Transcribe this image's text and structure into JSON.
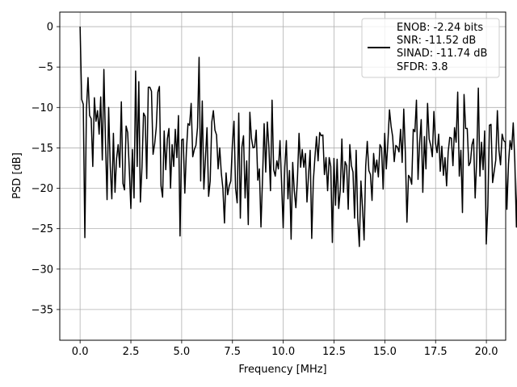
{
  "chart_data": {
    "type": "line",
    "xlabel": "Frequency [MHz]",
    "ylabel": "PSD [dB]",
    "xlim": [
      -1.0,
      20.95
    ],
    "ylim": [
      -38.8,
      1.8
    ],
    "grid": true,
    "x_ticks": [
      0.0,
      2.5,
      5.0,
      7.5,
      10.0,
      12.5,
      15.0,
      17.5,
      20.0
    ],
    "x_tick_labels": [
      "0.0",
      "2.5",
      "5.0",
      "7.5",
      "10.0",
      "12.5",
      "15.0",
      "17.5",
      "20.0"
    ],
    "y_ticks": [
      0,
      -5,
      -10,
      -15,
      -20,
      -25,
      -30,
      -35
    ],
    "y_tick_labels": [
      "0",
      "−5",
      "−10",
      "−15",
      "−20",
      "−25",
      "−30",
      "−35"
    ],
    "legend": {
      "position": "upper right",
      "entries": [
        "ENOB: -2.24 bits",
        "SNR: -11.52 dB",
        "SINAD: -11.74 dB",
        "SFDR: 3.8"
      ]
    },
    "series": [
      {
        "color": "#000000",
        "x_start": 0.0,
        "x_step": 0.0781,
        "values": [
          0.0,
          -9.0,
          -9.6,
          -26.1,
          -10.2,
          -6.3,
          -11.0,
          -11.4,
          -17.3,
          -8.8,
          -11.7,
          -10.4,
          -13.3,
          -8.7,
          -16.5,
          -5.3,
          -14.2,
          -21.4,
          -10.0,
          -17.3,
          -21.3,
          -13.2,
          -20.5,
          -16.3,
          -14.6,
          -17.4,
          -9.3,
          -19.4,
          -20.2,
          -12.3,
          -13.1,
          -17.6,
          -22.5,
          -15.2,
          -21.2,
          -5.5,
          -17.3,
          -6.8,
          -21.7,
          -17.4,
          -10.7,
          -11.1,
          -18.8,
          -7.5,
          -7.5,
          -8.0,
          -15.8,
          -14.5,
          -12.5,
          -8.1,
          -7.4,
          -19.7,
          -21.1,
          -12.9,
          -17.7,
          -13.9,
          -12.6,
          -20.0,
          -14.6,
          -17.3,
          -12.7,
          -16.2,
          -11.0,
          -25.9,
          -14.0,
          -13.9,
          -20.6,
          -15.4,
          -12.0,
          -12.2,
          -9.5,
          -16.1,
          -15.2,
          -14.7,
          -12.5,
          -3.8,
          -19.1,
          -9.2,
          -20.1,
          -16.3,
          -12.5,
          -21.0,
          -19.1,
          -11.8,
          -10.4,
          -12.8,
          -13.4,
          -17.6,
          -15.0,
          -18.1,
          -20.0,
          -24.3,
          -18.1,
          -20.8,
          -19.7,
          -19.1,
          -14.5,
          -11.7,
          -20.0,
          -21.8,
          -10.7,
          -23.7,
          -14.9,
          -13.5,
          -21.2,
          -16.6,
          -24.5,
          -10.6,
          -13.8,
          -15.0,
          -14.9,
          -12.8,
          -19.0,
          -17.6,
          -24.8,
          -18.7,
          -12.0,
          -18.0,
          -11.8,
          -14.9,
          -20.3,
          -9.1,
          -17.7,
          -18.5,
          -16.6,
          -17.6,
          -14.1,
          -19.4,
          -24.9,
          -17.4,
          -14.1,
          -21.3,
          -17.8,
          -26.3,
          -16.8,
          -20.3,
          -22.4,
          -18.8,
          -13.2,
          -17.4,
          -15.2,
          -17.4,
          -15.7,
          -21.7,
          -18.3,
          -15.3,
          -26.2,
          -19.1,
          -16.2,
          -13.6,
          -16.6,
          -13.1,
          -13.5,
          -13.4,
          -18.3,
          -16.2,
          -20.3,
          -16.2,
          -17.3,
          -26.7,
          -16.3,
          -22.1,
          -16.4,
          -22.5,
          -20.2,
          -13.9,
          -20.5,
          -16.7,
          -17.2,
          -22.6,
          -14.6,
          -17.2,
          -18.0,
          -23.7,
          -15.3,
          -23.8,
          -27.2,
          -19.1,
          -22.4,
          -26.4,
          -17.3,
          -14.2,
          -17.8,
          -18.3,
          -21.5,
          -15.7,
          -18.0,
          -16.5,
          -18.6,
          -14.6,
          -15.0,
          -20.1,
          -13.2,
          -17.6,
          -14.3,
          -10.3,
          -12.3,
          -13.6,
          -16.7,
          -14.7,
          -14.9,
          -15.5,
          -12.7,
          -16.8,
          -10.2,
          -15.6,
          -24.2,
          -18.4,
          -18.7,
          -19.5,
          -12.7,
          -13.0,
          -9.1,
          -18.9,
          -14.4,
          -11.5,
          -20.5,
          -13.6,
          -17.6,
          -9.5,
          -13.9,
          -14.7,
          -16.1,
          -10.5,
          -14.4,
          -15.6,
          -13.3,
          -17.9,
          -14.8,
          -18.4,
          -16.2,
          -19.7,
          -15.5,
          -13.7,
          -13.8,
          -17.2,
          -12.5,
          -14.3,
          -8.1,
          -18.5,
          -15.3,
          -23.0,
          -8.4,
          -12.6,
          -12.6,
          -17.2,
          -16.8,
          -14.6,
          -13.9,
          -21.2,
          -16.3,
          -7.6,
          -18.5,
          -14.3,
          -17.7,
          -12.9,
          -26.9,
          -22.2,
          -12.2,
          -12.1,
          -19.3,
          -17.9,
          -16.5,
          -10.4,
          -15.3,
          -17.1,
          -13.3,
          -14.1,
          -14.3,
          -22.6,
          -17.0,
          -14.1,
          -15.2,
          -11.9,
          -16.7,
          -24.8,
          -16.5,
          -22.6,
          -15.1,
          -12.6,
          -11.5,
          -15.8,
          -17.4,
          -15.2,
          -16.1,
          -17.8,
          -11.8,
          -11.1,
          -11.9,
          -14.9,
          -23.5,
          -21.6,
          -15.6,
          -22.0,
          -13.3,
          -14.8,
          -13.0,
          -16.3,
          -17.2,
          -10.0,
          -16.4,
          -11.7,
          -13.7,
          -15.7,
          -19.1,
          -14.8,
          -16.8,
          -21.1,
          -16.5,
          -16.6,
          -13.4,
          -11.7,
          -17.8,
          -14.4,
          -16.1,
          -19.4,
          -10.8,
          -15.7,
          -18.4,
          -10.2,
          -16.0,
          -16.4,
          -13.4,
          -17.8,
          -18.6,
          -20.7,
          -10.7,
          -9.3,
          -13.9,
          -14.3,
          -22.7,
          -18.5,
          -19.5,
          -14.7,
          -17.1,
          -15.8,
          -15.7,
          -20.0,
          -26.8,
          -21.7,
          -19.4,
          -19.9,
          -9.4,
          -13.3,
          -16.8,
          -14.9,
          -10.5,
          -19.1,
          -10.7,
          -13.7,
          -13.0,
          -16.8,
          -21.1,
          -17.9,
          -20.9,
          -17.0,
          -27.3,
          -25.4,
          -14.2,
          -16.2,
          -17.4,
          -14.2,
          -19.5,
          -16.1,
          -18.7,
          -22.4,
          -17.2,
          -20.7,
          -14.8,
          -19.1,
          -18.8,
          -21.3,
          -13.1,
          -11.5,
          -16.5,
          -15.9,
          -15.1,
          -19.7,
          -14.3,
          -13.1,
          -16.6,
          -9.1,
          -13.7,
          -18.9,
          -16.4,
          -13.1,
          -17.5,
          -14.8,
          -13.9,
          -12.5,
          -14.3,
          -17.0,
          -20.2,
          -22.4,
          -24.9,
          -12.3,
          -16.0,
          -19.1,
          -15.4,
          -15.7,
          -18.6,
          -17.4,
          -14.1,
          -16.7,
          -20.0,
          -18.6,
          -13.2,
          -16.9,
          -15.8,
          -12.0,
          -13.9,
          -16.4,
          -13.5,
          -17.8,
          -13.0,
          -12.6,
          -13.6,
          -18.2,
          -18.2,
          -11.1,
          -22.6,
          -11.1,
          -16.6,
          -13.0,
          -20.1,
          -19.7,
          -16.2,
          -19.4,
          -11.2,
          -17.7,
          -20.9,
          -16.3,
          -16.0,
          -14.4,
          -15.6,
          -17.3,
          -19.6,
          -12.3,
          -17.7,
          -16.9,
          -22.5,
          -19.5,
          -13.6,
          -18.9,
          -16.8,
          -18.1,
          -17.1,
          -11.2,
          -19.4,
          -16.4,
          -19.0,
          -21.9,
          -19.2,
          -17.5,
          -21.2,
          -18.0,
          -14.4,
          -14.2,
          -10.7,
          -12.6,
          -12.9,
          -15.9,
          -19.2,
          -17.9,
          -19.9,
          -17.6,
          -15.5,
          -15.1,
          -16.7,
          -18.3,
          -22.3,
          -15.8,
          -16.0,
          -17.3,
          -16.1,
          -11.7,
          -17.3,
          -13.0,
          -9.8,
          -15.8,
          -19.9,
          -17.7,
          -13.5,
          -16.9,
          -20.8,
          -16.3,
          -15.1,
          -12.1,
          -17.2,
          -18.0,
          -13.4,
          -15.0,
          -16.3,
          -17.6,
          -14.5,
          -15.6,
          -14.3,
          -22.3,
          -14.4,
          -17.9,
          -12.7,
          -15.0,
          -19.2,
          -15.9,
          -13.7,
          -15.9,
          -20.1,
          -15.2,
          -15.0,
          -13.6,
          -16.1,
          -14.4,
          -15.3,
          -18.8,
          -13.4,
          -20.3,
          -17.6,
          -13.8,
          -12.4,
          -15.1,
          -16.7,
          -19.5,
          -17.1,
          -20.2,
          -16.9,
          -17.1,
          -16.9,
          -22.5,
          -19.1,
          -16.1,
          -15.1,
          -13.8,
          -12.5,
          -15.5,
          -17.7,
          -12.5,
          -13.9,
          -14.4,
          -14.8,
          -16.1,
          -11.4,
          -12.6,
          -17.5,
          -15.4,
          -13.9,
          -16.6,
          -16.7,
          -14.9,
          -16.4,
          -16.0,
          -17.5,
          -20.3,
          -16.5,
          -16.0,
          -14.7,
          -16.0,
          -13.5,
          -13.3,
          -16.8,
          -16.2,
          -15.2,
          -17.9,
          -16.0,
          -15.6,
          -19.9,
          -15.0,
          -17.1,
          -15.5,
          -14.9,
          -15.4,
          -17.2,
          -17.4,
          -14.7,
          -18.1,
          -19.4,
          -15.6,
          -17.4,
          -17.9,
          -17.3,
          -15.3,
          -14.2,
          -18.7,
          -17.3,
          -15.3,
          -18.7,
          -20.7,
          -14.6,
          -13.8,
          -15.6,
          -15.9,
          -14.7,
          -14.2,
          -15.8,
          -16.7,
          -14.4,
          -14.9,
          -18.0,
          -17.1,
          -16.1,
          -13.7,
          -16.5,
          -18.9,
          -13.7,
          -14.1,
          -16.2,
          -18.8,
          -15.3,
          -15.6,
          -14.4,
          -14.2,
          -20.4,
          -15.2,
          -17.5,
          -14.5,
          -14.0,
          -18.4,
          -15.1,
          -16.0,
          -17.9,
          -16.7,
          -14.8,
          -16.3,
          -15.8,
          -17.6,
          -16.6,
          -15.4,
          -14.2,
          -15.7,
          -17.3,
          -16.1,
          -14.9,
          -19.0,
          -13.2,
          -15.4,
          -18.7,
          -14.1,
          -13.2,
          -17.8,
          -16.2,
          -16.9,
          -13.1,
          -17.2,
          -16.0,
          -19.4,
          -16.3,
          -15.6,
          -14.0,
          -15.0,
          -19.4,
          -15.8,
          -14.2,
          -16.2,
          -15.3,
          -16.8,
          -13.6,
          -17.4,
          -17.0,
          -13.1,
          -15.6,
          -15.8,
          -14.7,
          -17.8,
          -14.4,
          -15.8,
          -22.6
        ]
      }
    ]
  }
}
